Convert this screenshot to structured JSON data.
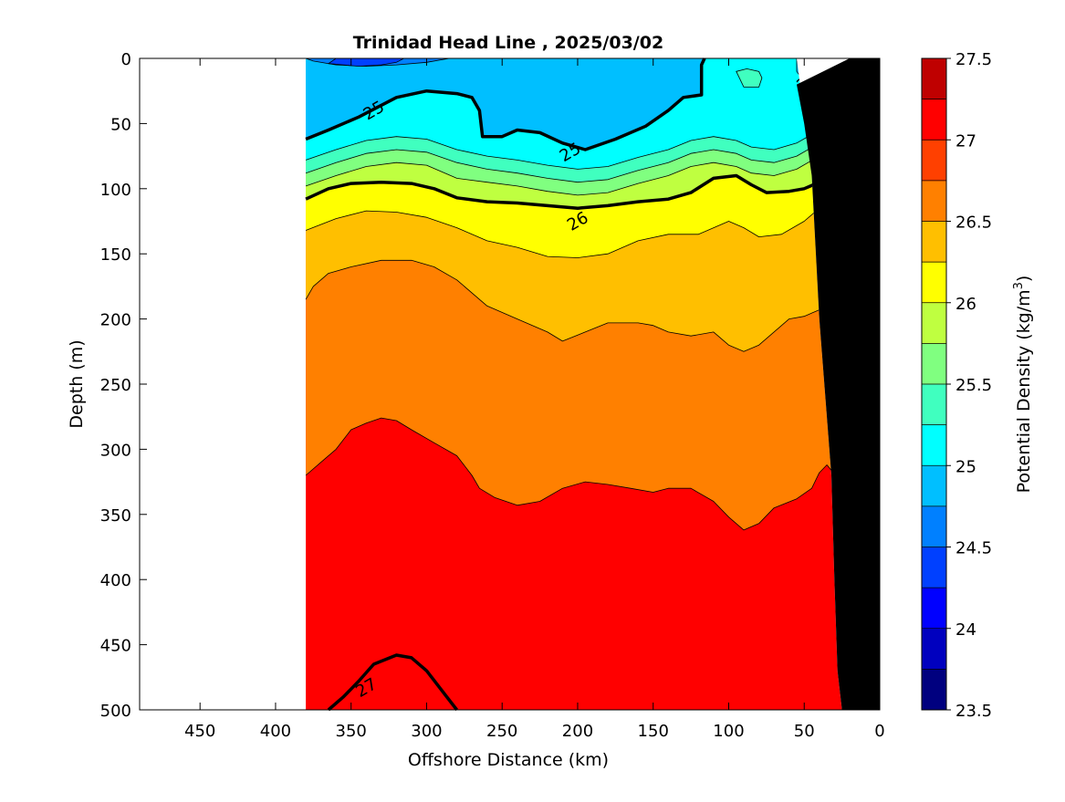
{
  "chart_data": {
    "type": "contour",
    "title": "Trinidad Head Line , 2025/03/02",
    "xlabel": "Offshore Distance (km)",
    "ylabel": "Depth (m)",
    "colorbar_label": "Potential Density (kg/m",
    "colorbar_label_sup": "3",
    "colorbar_label_end": ")",
    "xlim": [
      490,
      0
    ],
    "x_reversed": true,
    "ylim": [
      0,
      500
    ],
    "y_reversed": true,
    "x_ticks": [
      450,
      400,
      350,
      300,
      250,
      200,
      150,
      100,
      50,
      0
    ],
    "y_ticks": [
      0,
      50,
      100,
      150,
      200,
      250,
      300,
      350,
      400,
      450,
      500
    ],
    "colorbar_range": [
      23.5,
      27.5
    ],
    "colorbar_step": 0.25,
    "colorbar_tick_labels": [
      "27.5",
      "27",
      "26.5",
      "26",
      "25.5",
      "25",
      "24.5",
      "24",
      "23.5"
    ],
    "colormap": [
      "#00007f",
      "#0000bf",
      "#0000ff",
      "#0040ff",
      "#0080ff",
      "#00bfff",
      "#00ffff",
      "#40ffbf",
      "#80ff80",
      "#bfff40",
      "#ffff00",
      "#ffbf00",
      "#ff8000",
      "#ff4000",
      "#ff0000",
      "#bf0000"
    ],
    "data_x_range_km": [
      380,
      20
    ],
    "bathymetry_color": "#000000",
    "bands": [
      {
        "level": 24.5,
        "color": "#0080ff",
        "boundary": [
          [
            380,
            0
          ],
          [
            375,
            2
          ],
          [
            360,
            5
          ],
          [
            340,
            6
          ],
          [
            320,
            5
          ],
          [
            300,
            3
          ],
          [
            285,
            0
          ]
        ]
      },
      {
        "level": 25.0,
        "color": "#00bfff",
        "boundary": [
          [
            380,
            62
          ],
          [
            365,
            55
          ],
          [
            345,
            45
          ],
          [
            320,
            30
          ],
          [
            300,
            25
          ],
          [
            280,
            27
          ],
          [
            270,
            30
          ],
          [
            265,
            40
          ],
          [
            263,
            60
          ],
          [
            250,
            60
          ],
          [
            240,
            55
          ],
          [
            225,
            57
          ],
          [
            210,
            65
          ],
          [
            195,
            70
          ],
          [
            175,
            62
          ],
          [
            155,
            52
          ],
          [
            140,
            40
          ],
          [
            130,
            30
          ],
          [
            118,
            28
          ],
          [
            118,
            5
          ],
          [
            116,
            0
          ]
        ]
      },
      {
        "level": 25.25,
        "color": "#00ffff",
        "boundary": [
          [
            380,
            78
          ],
          [
            360,
            70
          ],
          [
            340,
            63
          ],
          [
            320,
            60
          ],
          [
            300,
            62
          ],
          [
            280,
            70
          ],
          [
            260,
            75
          ],
          [
            240,
            78
          ],
          [
            220,
            82
          ],
          [
            200,
            85
          ],
          [
            180,
            83
          ],
          [
            160,
            76
          ],
          [
            140,
            70
          ],
          [
            125,
            63
          ],
          [
            110,
            60
          ],
          [
            95,
            63
          ],
          [
            85,
            68
          ],
          [
            70,
            70
          ],
          [
            55,
            65
          ],
          [
            40,
            55
          ],
          [
            25,
            45
          ],
          [
            20,
            40
          ]
        ]
      },
      {
        "level": 25.5,
        "color": "#40ffbf",
        "boundary": [
          [
            380,
            88
          ],
          [
            360,
            80
          ],
          [
            340,
            73
          ],
          [
            320,
            70
          ],
          [
            300,
            72
          ],
          [
            280,
            80
          ],
          [
            260,
            85
          ],
          [
            240,
            88
          ],
          [
            220,
            92
          ],
          [
            200,
            95
          ],
          [
            180,
            93
          ],
          [
            160,
            86
          ],
          [
            140,
            80
          ],
          [
            125,
            73
          ],
          [
            110,
            70
          ],
          [
            95,
            73
          ],
          [
            85,
            78
          ],
          [
            70,
            80
          ],
          [
            55,
            75
          ],
          [
            40,
            65
          ],
          [
            25,
            55
          ],
          [
            20,
            50
          ]
        ]
      },
      {
        "level": 25.75,
        "color": "#80ff80",
        "boundary": [
          [
            380,
            98
          ],
          [
            360,
            90
          ],
          [
            340,
            83
          ],
          [
            320,
            80
          ],
          [
            300,
            82
          ],
          [
            280,
            92
          ],
          [
            260,
            95
          ],
          [
            240,
            98
          ],
          [
            220,
            102
          ],
          [
            200,
            105
          ],
          [
            180,
            103
          ],
          [
            160,
            96
          ],
          [
            140,
            90
          ],
          [
            125,
            83
          ],
          [
            110,
            80
          ],
          [
            95,
            83
          ],
          [
            85,
            88
          ],
          [
            70,
            90
          ],
          [
            55,
            85
          ],
          [
            40,
            75
          ],
          [
            25,
            65
          ],
          [
            20,
            60
          ]
        ]
      },
      {
        "level": 26.0,
        "color": "#bfff40",
        "boundary": [
          [
            380,
            108
          ],
          [
            365,
            100
          ],
          [
            350,
            96
          ],
          [
            330,
            95
          ],
          [
            310,
            96
          ],
          [
            295,
            100
          ],
          [
            280,
            107
          ],
          [
            260,
            110
          ],
          [
            240,
            111
          ],
          [
            220,
            113
          ],
          [
            200,
            115
          ],
          [
            180,
            113
          ],
          [
            160,
            110
          ],
          [
            140,
            108
          ],
          [
            125,
            103
          ],
          [
            110,
            92
          ],
          [
            95,
            90
          ],
          [
            85,
            97
          ],
          [
            75,
            103
          ],
          [
            60,
            102
          ],
          [
            50,
            100
          ],
          [
            40,
            95
          ],
          [
            30,
            85
          ],
          [
            20,
            75
          ]
        ]
      },
      {
        "level": 26.25,
        "color": "#ffff00",
        "boundary": [
          [
            380,
            132
          ],
          [
            360,
            123
          ],
          [
            340,
            117
          ],
          [
            320,
            118
          ],
          [
            300,
            122
          ],
          [
            280,
            130
          ],
          [
            260,
            140
          ],
          [
            240,
            145
          ],
          [
            220,
            152
          ],
          [
            200,
            153
          ],
          [
            180,
            150
          ],
          [
            160,
            140
          ],
          [
            140,
            135
          ],
          [
            120,
            135
          ],
          [
            100,
            125
          ],
          [
            90,
            130
          ],
          [
            80,
            137
          ],
          [
            65,
            135
          ],
          [
            50,
            125
          ],
          [
            40,
            115
          ],
          [
            30,
            105
          ],
          [
            20,
            95
          ]
        ]
      },
      {
        "level": 26.5,
        "color": "#ffbf00",
        "boundary": [
          [
            380,
            185
          ],
          [
            375,
            175
          ],
          [
            365,
            165
          ],
          [
            350,
            160
          ],
          [
            330,
            155
          ],
          [
            310,
            155
          ],
          [
            295,
            160
          ],
          [
            280,
            170
          ],
          [
            260,
            190
          ],
          [
            240,
            200
          ],
          [
            220,
            210
          ],
          [
            210,
            217
          ],
          [
            195,
            210
          ],
          [
            180,
            203
          ],
          [
            160,
            203
          ],
          [
            150,
            205
          ],
          [
            140,
            210
          ],
          [
            125,
            213
          ],
          [
            110,
            210
          ],
          [
            100,
            220
          ],
          [
            90,
            225
          ],
          [
            80,
            220
          ],
          [
            70,
            210
          ],
          [
            60,
            200
          ],
          [
            50,
            198
          ],
          [
            40,
            193
          ],
          [
            30,
            185
          ],
          [
            25,
            180
          ],
          [
            22,
            177
          ]
        ]
      },
      {
        "level": 26.75,
        "color": "#ff8000",
        "boundary": [
          [
            380,
            320
          ],
          [
            370,
            310
          ],
          [
            360,
            300
          ],
          [
            350,
            285
          ],
          [
            340,
            280
          ],
          [
            330,
            276
          ],
          [
            320,
            278
          ],
          [
            310,
            285
          ],
          [
            295,
            295
          ],
          [
            280,
            305
          ],
          [
            270,
            320
          ],
          [
            265,
            330
          ],
          [
            255,
            337
          ],
          [
            240,
            343
          ],
          [
            225,
            340
          ],
          [
            210,
            330
          ],
          [
            195,
            325
          ],
          [
            180,
            327
          ],
          [
            165,
            330
          ],
          [
            150,
            333
          ],
          [
            140,
            330
          ],
          [
            125,
            330
          ],
          [
            110,
            340
          ],
          [
            100,
            352
          ],
          [
            90,
            362
          ],
          [
            80,
            357
          ],
          [
            70,
            345
          ],
          [
            55,
            338
          ],
          [
            45,
            330
          ],
          [
            40,
            318
          ],
          [
            35,
            312
          ],
          [
            28,
            322
          ]
        ]
      },
      {
        "level": 27.0,
        "color": "#ff4000",
        "boundary": [
          [
            365,
            500
          ],
          [
            355,
            490
          ],
          [
            345,
            478
          ],
          [
            335,
            465
          ],
          [
            320,
            458
          ],
          [
            310,
            460
          ],
          [
            300,
            470
          ],
          [
            290,
            485
          ],
          [
            280,
            500
          ]
        ]
      }
    ],
    "closed_features": [
      {
        "color": "#0040ff",
        "points": [
          [
            365,
            4
          ],
          [
            345,
            6
          ],
          [
            330,
            5
          ],
          [
            320,
            3
          ],
          [
            315,
            0
          ],
          [
            360,
            0
          ]
        ]
      },
      {
        "color": "#0040ff",
        "points": [
          [
            45,
            0
          ],
          [
            40,
            5
          ],
          [
            35,
            10
          ],
          [
            28,
            13
          ],
          [
            22,
            12
          ],
          [
            20,
            8
          ],
          [
            20,
            0
          ]
        ]
      },
      {
        "color": "#00bfff",
        "points": [
          [
            55,
            0
          ],
          [
            55,
            10
          ],
          [
            50,
            18
          ],
          [
            40,
            25
          ],
          [
            30,
            30
          ],
          [
            22,
            30
          ],
          [
            20,
            27
          ],
          [
            20,
            0
          ]
        ]
      },
      {
        "color": "#40ffbf",
        "points": [
          [
            95,
            10
          ],
          [
            90,
            22
          ],
          [
            80,
            22
          ],
          [
            78,
            15
          ],
          [
            80,
            10
          ],
          [
            88,
            8
          ]
        ]
      }
    ],
    "bold_contours": [
      {
        "level": 25,
        "label": "25",
        "label_at": [
          [
            335,
            40
          ],
          [
            205,
            72
          ],
          [
            48,
            18
          ]
        ]
      },
      {
        "level": 26,
        "label": "26",
        "label_at": [
          [
            200,
            125
          ],
          [
            38,
            88
          ]
        ]
      },
      {
        "level": 27,
        "label": "27",
        "label_at": [
          [
            340,
            483
          ]
        ]
      }
    ],
    "bathymetry": [
      [
        20,
        0
      ],
      [
        0,
        0
      ],
      [
        0,
        500
      ],
      [
        25,
        500
      ],
      [
        28,
        470
      ],
      [
        30,
        400
      ],
      [
        32,
        320
      ],
      [
        40,
        200
      ],
      [
        45,
        90
      ],
      [
        50,
        50
      ],
      [
        55,
        20
      ]
    ]
  }
}
